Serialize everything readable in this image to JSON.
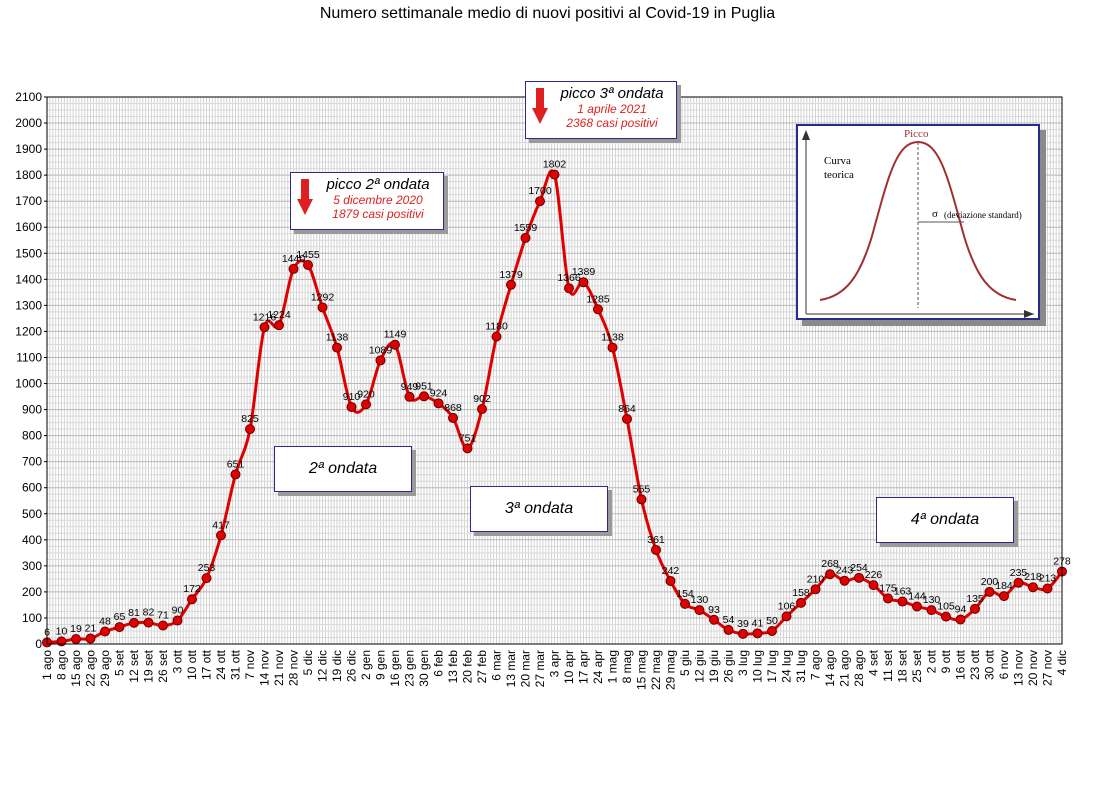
{
  "title": "Numero settimanale medio di nuovi positivi al Covid-19 in Puglia",
  "chart_data": {
    "type": "line",
    "ylim": [
      0,
      2100
    ],
    "yticks": [
      0,
      100,
      200,
      300,
      400,
      500,
      600,
      700,
      800,
      900,
      1000,
      1100,
      1200,
      1300,
      1400,
      1500,
      1600,
      1700,
      1800,
      1900,
      2000,
      2100
    ],
    "grid": true,
    "categories": [
      "1 ago",
      "8 ago",
      "15 ago",
      "22 ago",
      "29 ago",
      "5 set",
      "12 set",
      "19 set",
      "26 set",
      "3 ott",
      "10 ott",
      "17 ott",
      "24 ott",
      "31 ott",
      "7 nov",
      "14 nov",
      "21 nov",
      "28 nov",
      "5 dic",
      "12 dic",
      "19 dic",
      "26 dic",
      "2 gen",
      "9 gen",
      "16 gen",
      "23 gen",
      "30 gen",
      "6 feb",
      "13 feb",
      "20 feb",
      "27 feb",
      "6 mar",
      "13 mar",
      "20 mar",
      "27 mar",
      "3 apr",
      "10 apr",
      "17 apr",
      "24 apr",
      "1 mag",
      "8 mag",
      "15 mag",
      "22 mag",
      "29 mag",
      "5 giu",
      "12 giu",
      "19 giu",
      "26 giu",
      "3 lug",
      "10 lug",
      "17 lug",
      "24 lug",
      "31 lug",
      "7 ago",
      "14 ago",
      "21 ago",
      "28 ago",
      "4 set",
      "11 set",
      "18 set",
      "25 set",
      "2 ott",
      "9 ott",
      "16 ott",
      "23 ott",
      "30 ott",
      "6 nov",
      "13 nov",
      "20 nov",
      "27 nov",
      "4 dic"
    ],
    "values": [
      6,
      10,
      19,
      21,
      48,
      65,
      81,
      82,
      71,
      90,
      172,
      253,
      417,
      651,
      825,
      1216,
      1224,
      1440,
      1455,
      1292,
      1138,
      910,
      920,
      1089,
      1149,
      949,
      951,
      924,
      868,
      751,
      902,
      1180,
      1379,
      1559,
      1700,
      1802,
      1366,
      1389,
      1285,
      1138,
      864,
      555,
      361,
      242,
      154,
      130,
      93,
      54,
      39,
      41,
      50,
      106,
      158,
      210,
      268,
      243,
      254,
      226,
      175,
      163,
      144,
      130,
      105,
      94,
      135,
      200,
      184,
      235,
      218,
      213,
      278
    ],
    "data_labels": [
      "6",
      "10",
      "19",
      "21",
      "48",
      "65",
      "81",
      "82",
      "71",
      "90",
      "172",
      "253",
      "417",
      "651",
      "825",
      "1216",
      "1224",
      "1440",
      "1455",
      "1292",
      "1138",
      "910",
      "920",
      "1089",
      "1149",
      "949",
      "951",
      "924",
      "868",
      "751",
      "902",
      "1180",
      "1379",
      "1559",
      "1700",
      "1802",
      "1366",
      "1389",
      "1285",
      "1138",
      "864",
      "555",
      "361",
      "242",
      "154",
      "130",
      "93",
      "54",
      "39",
      "41",
      "50",
      "106",
      "158",
      "210",
      "268",
      "243",
      "254",
      "226",
      "175",
      "163",
      "144",
      "130",
      "105",
      "94",
      "135",
      "200",
      "184",
      "235",
      "218",
      "213",
      "278"
    ],
    "line_color": "#e00000",
    "marker_color": "#e00000"
  },
  "annotations": {
    "peak2": {
      "title": "picco 2ª ondata",
      "date": "5 dicembre 2020",
      "cases": "1879 casi positivi"
    },
    "peak3": {
      "title": "picco 3ª ondata",
      "date": "1 aprile 2021",
      "cases": "2368 casi positivi"
    },
    "wave2": "2ª ondata",
    "wave3": "3ª ondata",
    "wave4": "4ª ondata"
  },
  "inset": {
    "peak_label": "Picco",
    "curve_label": "Curva teorica",
    "sigma_label": "σ",
    "sigma_desc": "(deviazione standard)"
  },
  "colors": {
    "accent_red": "#e02020",
    "box_border": "#2a2a8a",
    "grid": "#c8c8c8",
    "bell_curve": "#a03030"
  }
}
